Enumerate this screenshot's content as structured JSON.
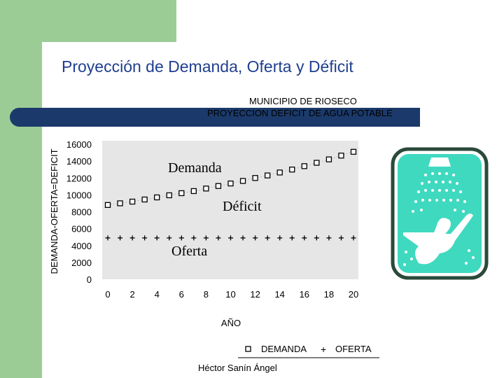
{
  "slide": {
    "title": "Proyección de Demanda, Oferta y Déficit",
    "footer": "Héctor Sanín Ángel"
  },
  "colors": {
    "green": "#9ccc96",
    "title_blue": "#1f3f8f",
    "bar_blue": "#1b3a6b",
    "plot_bg": "#e6e6e6",
    "logo_teal": "#3fd9c0"
  },
  "chart_data": {
    "type": "scatter",
    "title": "MUNICIPIO DE RIOSECO",
    "subtitle": "PROYECCION DEFICIT DE AGUA POTABLE",
    "xlabel": "AÑO",
    "ylabel": "DEMANDA-OFERTA=DEFICIT",
    "xlim": [
      0,
      20
    ],
    "ylim": [
      0,
      16000
    ],
    "x_ticks": [
      "0",
      "2",
      "4",
      "6",
      "8",
      "10",
      "12",
      "14",
      "16",
      "18",
      "20"
    ],
    "y_ticks": [
      "0",
      "2000",
      "4000",
      "6000",
      "8000",
      "10000",
      "12000",
      "14000",
      "16000"
    ],
    "x": [
      0,
      1,
      2,
      3,
      4,
      5,
      6,
      7,
      8,
      9,
      10,
      11,
      12,
      13,
      14,
      15,
      16,
      17,
      18,
      19,
      20
    ],
    "series": [
      {
        "name": "DEMANDA",
        "marker": "square",
        "values": [
          8800,
          9000,
          9200,
          9450,
          9700,
          9950,
          10200,
          10450,
          10750,
          11050,
          11350,
          11650,
          12000,
          12300,
          12650,
          13000,
          13400,
          13800,
          14200,
          14650,
          15100
        ]
      },
      {
        "name": "OFERTA",
        "marker": "plus",
        "values": [
          4900,
          4900,
          4900,
          4900,
          4900,
          4900,
          4900,
          4900,
          4900,
          4900,
          4900,
          4900,
          4900,
          4900,
          4900,
          4900,
          4900,
          4900,
          4900,
          4900,
          4900
        ]
      }
    ],
    "annotations": [
      "Demanda",
      "Déficit",
      "Oferta"
    ],
    "legend_placement": "bottom-right",
    "grid": false
  }
}
